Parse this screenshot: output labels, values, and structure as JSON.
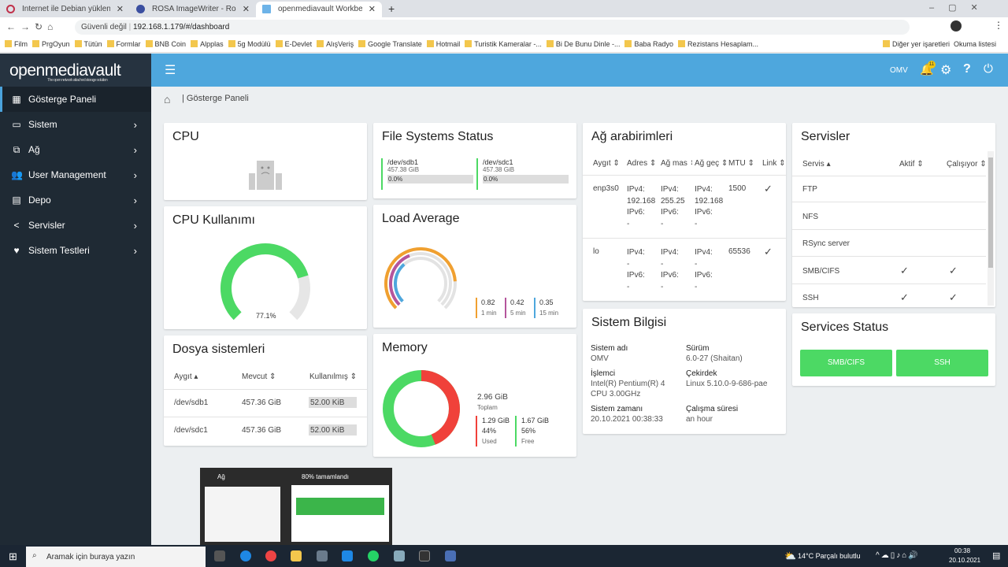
{
  "browser": {
    "tabs": [
      {
        "label": "İnternet ile Debian yüklenmesi"
      },
      {
        "label": "ROSA ImageWriter - Rosalab Wik"
      },
      {
        "label": "openmediavault Workbench"
      }
    ],
    "security": "Güvenli değil",
    "url": "192.168.1.179/#/dashboard",
    "bookmarks": [
      "Film",
      "PrgOyun",
      "Tütün",
      "Formlar",
      "BNB Coin",
      "Alpplas",
      "5g Modülü",
      "E-Devlet",
      "AlışVeriş",
      "Google Translate",
      "Hotmail",
      "Turistik Kameralar -...",
      "Bi De Bunu Dinle -...",
      "Baba Radyo",
      "Rezistans Hesaplam..."
    ],
    "other_bookmarks": "Diğer yer işaretleri",
    "reading_list": "Okuma listesi"
  },
  "app": {
    "logo": "openmediavault",
    "logo_sub": "The open network attached storage solution",
    "user": "OMV",
    "notif_count": "11"
  },
  "sidebar": [
    {
      "label": "Gösterge Paneli",
      "icon": "dashboard-icon"
    },
    {
      "label": "Sistem",
      "icon": "laptop-icon"
    },
    {
      "label": "Ağ",
      "icon": "network-icon"
    },
    {
      "label": "User Management",
      "icon": "users-icon"
    },
    {
      "label": "Depo",
      "icon": "storage-icon"
    },
    {
      "label": "Servisler",
      "icon": "share-icon"
    },
    {
      "label": "Sistem Testleri",
      "icon": "heartbeat-icon"
    }
  ],
  "breadcrumb": "Gösterge Paneli",
  "cpu": {
    "title": "CPU"
  },
  "cpu_usage": {
    "title": "CPU Kullanımı",
    "value": "77.1%",
    "fraction": 0.771
  },
  "fs_table": {
    "title": "Dosya sistemleri",
    "headers": [
      "Aygıt",
      "Mevcut",
      "Kullanılmış"
    ],
    "rows": [
      [
        "/dev/sdb1",
        "457.36 GiB",
        "52.00 KiB"
      ],
      [
        "/dev/sdc1",
        "457.36 GiB",
        "52.00 KiB"
      ]
    ]
  },
  "fs_status": {
    "title": "File Systems Status",
    "items": [
      {
        "dev": "/dev/sdb1",
        "size": "457.38 GiB",
        "pct": "0.0%"
      },
      {
        "dev": "/dev/sdc1",
        "size": "457.38 GiB",
        "pct": "0.0%"
      }
    ]
  },
  "load": {
    "title": "Load Average",
    "items": [
      {
        "value": "0.82",
        "label": "1 min",
        "color": "#f0a030"
      },
      {
        "value": "0.42",
        "label": "5 min",
        "color": "#b5559c"
      },
      {
        "value": "0.35",
        "label": "15 min",
        "color": "#4ea7dd"
      }
    ]
  },
  "memory": {
    "title": "Memory",
    "total": "2.96 GiB",
    "total_label": "Toplam",
    "used": "1.29 GiB",
    "used_pct": "44%",
    "used_label": "Used",
    "free": "1.67 GiB",
    "free_pct": "56%",
    "free_label": "Free"
  },
  "network": {
    "title": "Ağ arabirimleri",
    "headers": [
      "Aygıt",
      "Adres",
      "Ağ mas",
      "Ağ geç",
      "MTU",
      "Link"
    ],
    "rows": [
      {
        "dev": "enp3s0",
        "addr": [
          "IPv4:",
          "192.168",
          "IPv6:",
          "-"
        ],
        "mask": [
          "IPv4:",
          "255.25",
          "IPv6:",
          "-"
        ],
        "gw": [
          "IPv4:",
          "192.168",
          "IPv6:",
          "-"
        ],
        "mtu": "1500",
        "link": "✓"
      },
      {
        "dev": "lo",
        "addr": [
          "IPv4:",
          "-",
          "IPv6:",
          "-"
        ],
        "mask": [
          "IPv4:",
          "-",
          "IPv6:",
          "-"
        ],
        "gw": [
          "IPv4:",
          "-",
          "IPv6:",
          "-"
        ],
        "mtu": "65536",
        "link": "✓"
      }
    ]
  },
  "sysinfo": {
    "title": "Sistem Bilgisi",
    "fields": [
      {
        "label": "Sistem adı",
        "value": "OMV"
      },
      {
        "label": "Sürüm",
        "value": "6.0-27 (Shaitan)"
      },
      {
        "label": "İşlemci",
        "value": "Intel(R) Pentium(R) 4 CPU 3.00GHz"
      },
      {
        "label": "Çekirdek",
        "value": "Linux 5.10.0-9-686-pae"
      },
      {
        "label": "Sistem zamanı",
        "value": "20.10.2021 00:38:33"
      },
      {
        "label": "Çalışma süresi",
        "value": "an hour"
      }
    ]
  },
  "services": {
    "title": "Servisler",
    "headers": [
      "Servis",
      "Aktif",
      "Çalışıyor"
    ],
    "rows": [
      {
        "name": "FTP",
        "active": "",
        "running": ""
      },
      {
        "name": "NFS",
        "active": "",
        "running": ""
      },
      {
        "name": "RSync server",
        "active": "",
        "running": ""
      },
      {
        "name": "SMB/CIFS",
        "active": "✓",
        "running": "✓"
      },
      {
        "name": "SSH",
        "active": "✓",
        "running": "✓"
      }
    ]
  },
  "services_status": {
    "title": "Services Status",
    "buttons": [
      "SMB/CIFS",
      "SSH"
    ]
  },
  "popup": {
    "left": "Ağ",
    "right": "80% tamamlandı"
  },
  "taskbar": {
    "search": "Aramak için buraya yazın",
    "weather": "14°C  Parçalı bulutlu",
    "time": "00:38",
    "date": "20.10.2021"
  }
}
